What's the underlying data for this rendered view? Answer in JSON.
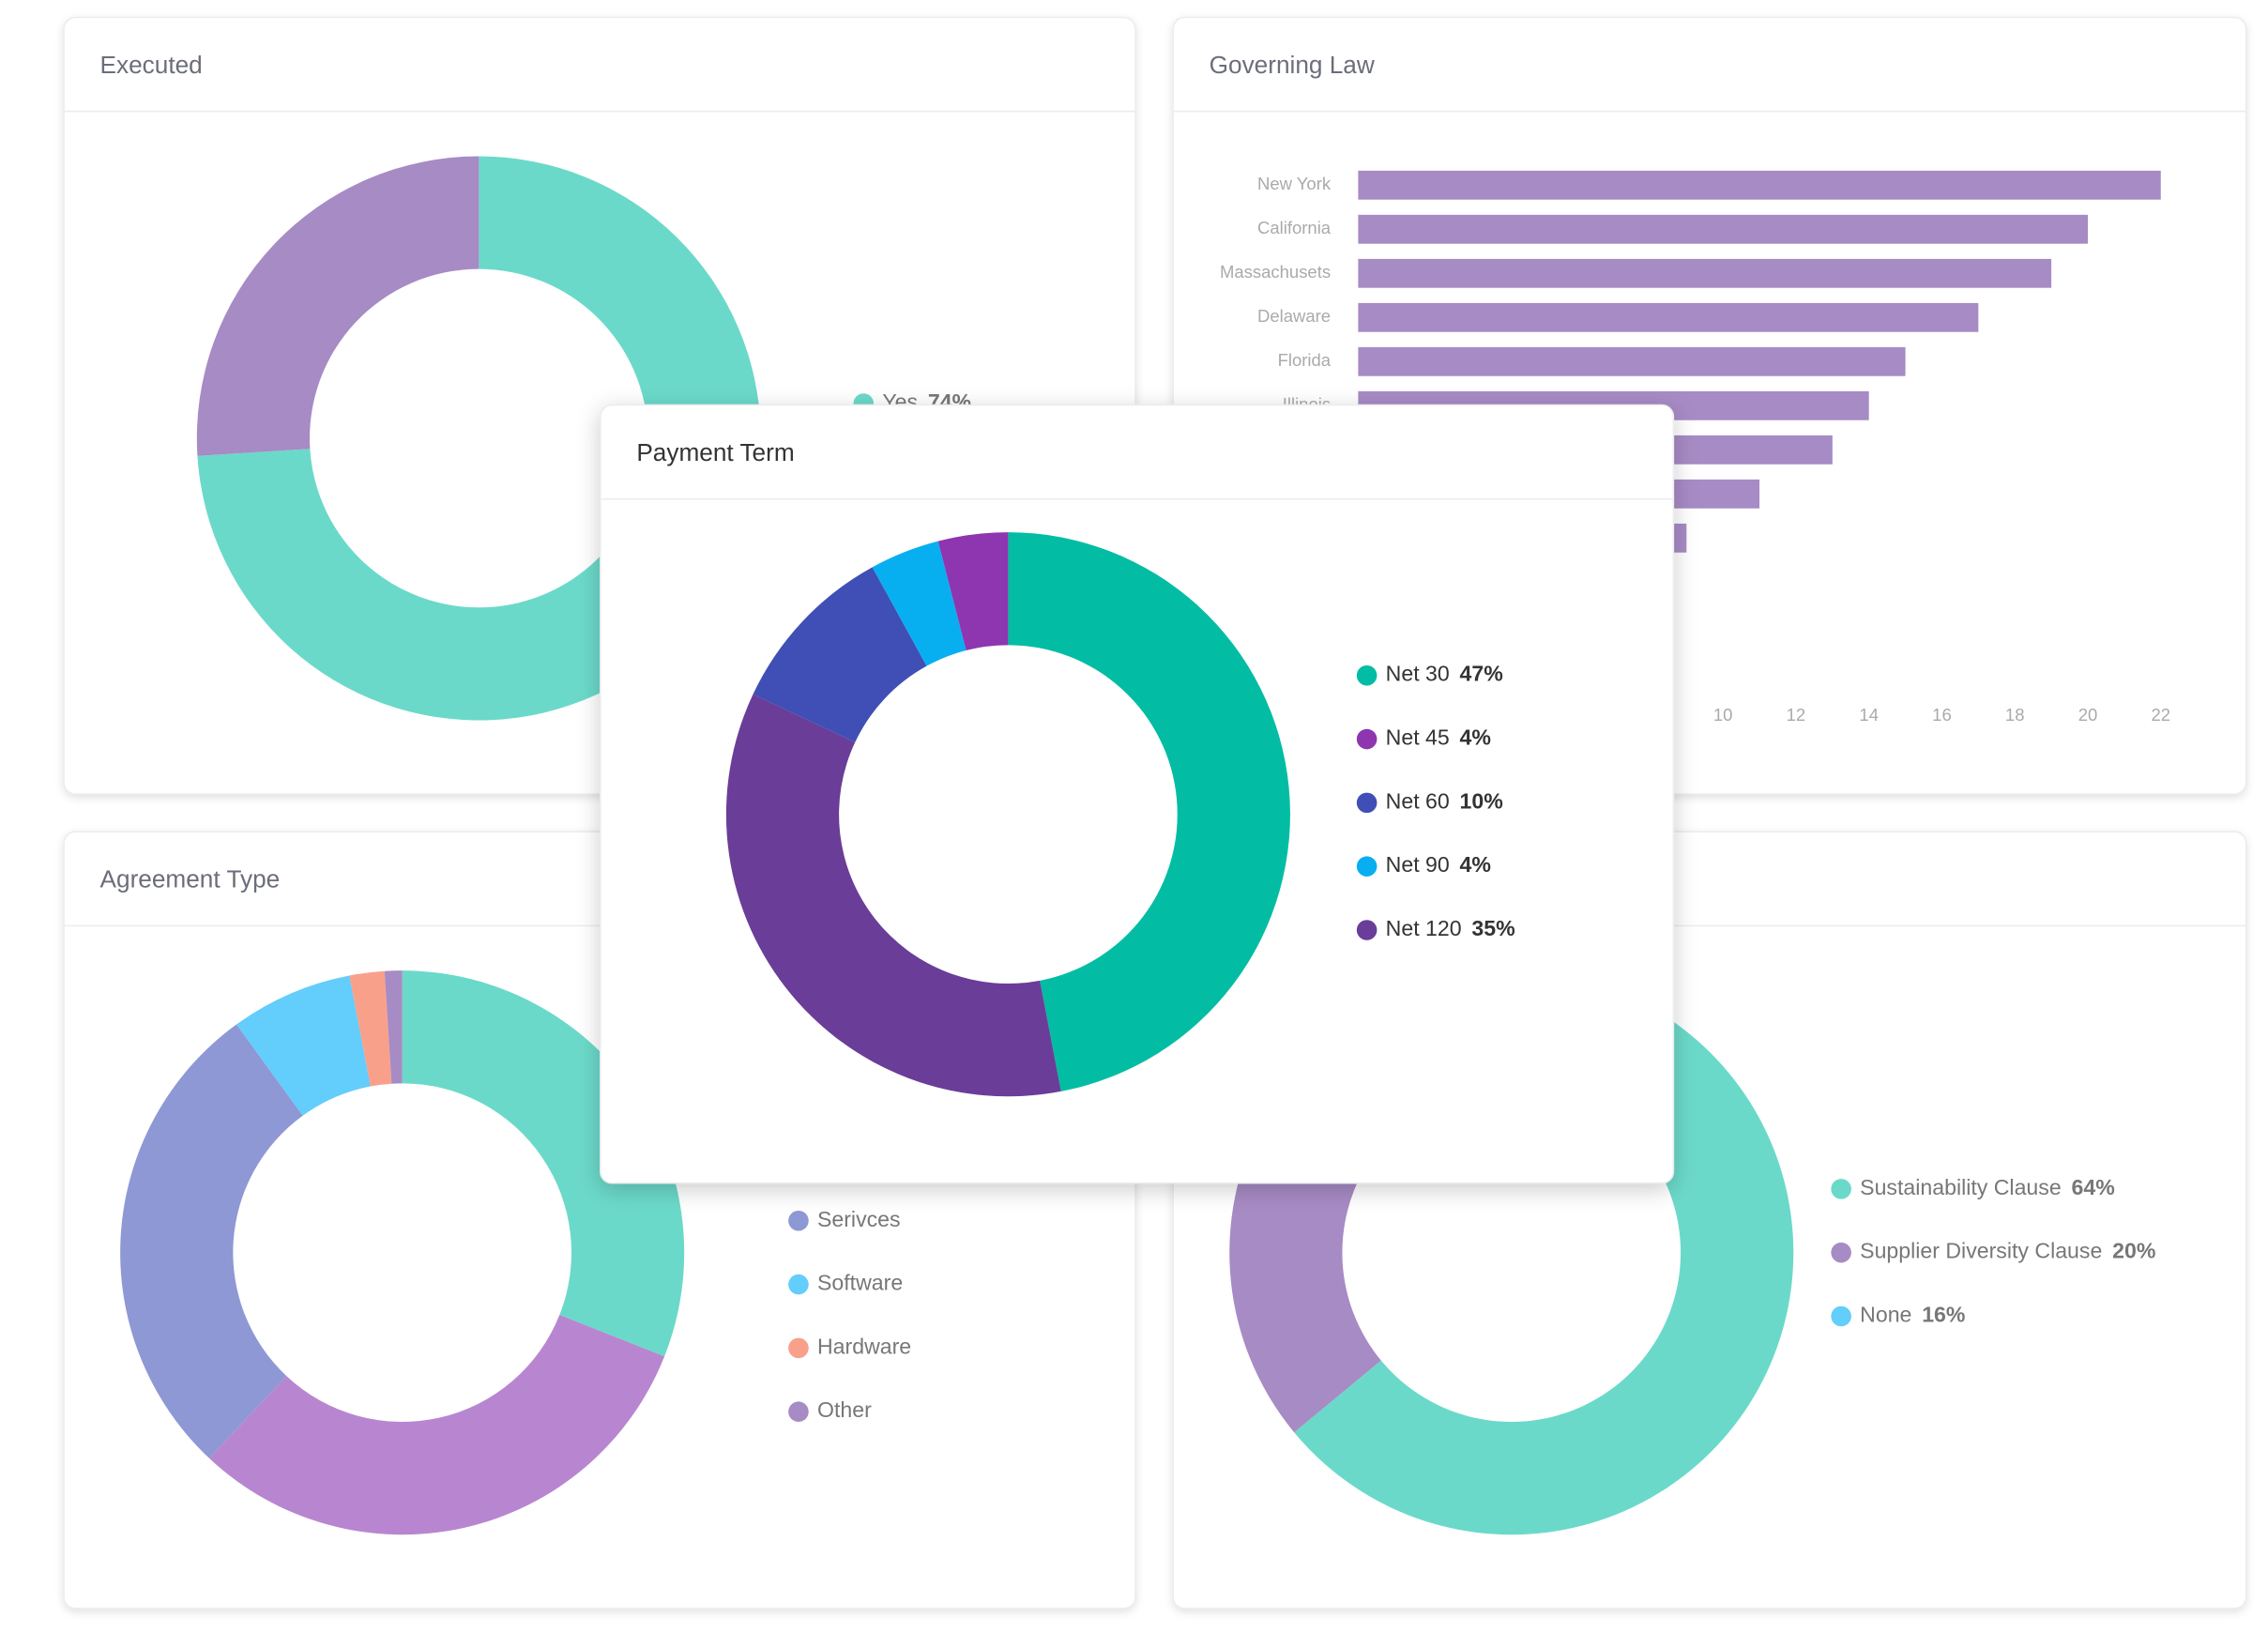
{
  "chart_data": [
    {
      "type": "pie",
      "title": "Executed",
      "categories": [
        "Yes",
        null
      ],
      "values": [
        74,
        26
      ],
      "value_labels": [
        "74%",
        null
      ],
      "colors": [
        "#6bd9c9",
        "#a78bc4"
      ]
    },
    {
      "type": "bar",
      "title": "Governing Law",
      "orientation": "horizontal",
      "categories": [
        "New York",
        "California",
        "Massachusets",
        "Delaware",
        "Florida",
        "Illinois",
        null,
        null,
        null
      ],
      "values": [
        22,
        20,
        19,
        17,
        15,
        14,
        13,
        11,
        9
      ],
      "color": "#a78bc4",
      "xlim": [
        0,
        22
      ],
      "xticks": [
        0,
        2,
        4,
        6,
        8,
        10,
        12,
        14,
        16,
        18,
        20,
        22
      ],
      "grid": false
    },
    {
      "type": "pie",
      "title": "Agreement Type",
      "categories": [
        null,
        null,
        "Serivces",
        "Software",
        "Hardware",
        "Other"
      ],
      "values": [
        31,
        31,
        28,
        7,
        2,
        1
      ],
      "colors": [
        "#6bd9c9",
        "#b886d0",
        "#8e98d4",
        "#63cdfb",
        "#f9a08b",
        "#a78bc4"
      ]
    },
    {
      "type": "pie",
      "categories": [
        "Sustainability Clause",
        "Supplier Diversity Clause",
        "None"
      ],
      "values": [
        64,
        20,
        16
      ],
      "value_labels": [
        "64%",
        "20%",
        "16%"
      ],
      "colors": [
        "#6bd9c9",
        "#a78bc4",
        "#63cdfb"
      ]
    },
    {
      "type": "pie",
      "title": "Payment Term",
      "categories": [
        "Net 30",
        "Net 45",
        "Net 60",
        "Net 90",
        "Net 120"
      ],
      "values": [
        47,
        4,
        10,
        4,
        35
      ],
      "value_labels": [
        "47%",
        "4%",
        "10%",
        "4%",
        "35%"
      ],
      "colors": [
        "#02bda3",
        "#8e35b0",
        "#3f4fb5",
        "#08aff0",
        "#6a3d98"
      ]
    }
  ]
}
